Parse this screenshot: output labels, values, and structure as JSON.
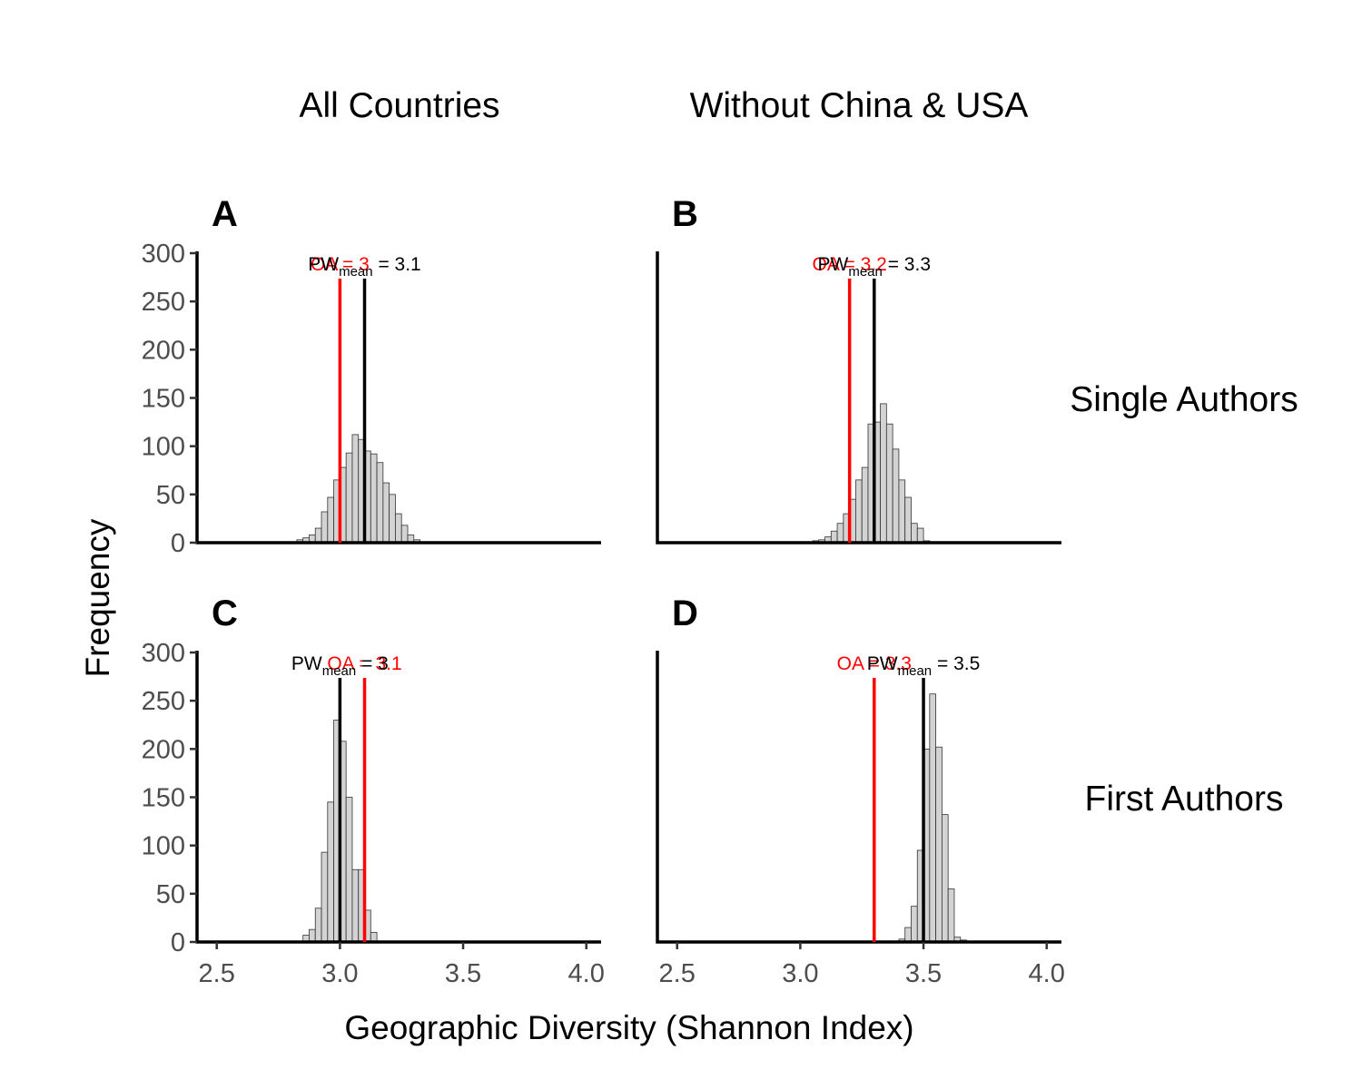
{
  "chart_data": {
    "type": "histogram",
    "column_titles": [
      "All Countries",
      "Without China & USA"
    ],
    "row_titles": [
      "Single Authors",
      "First Authors"
    ],
    "xlabel": "Geographic Diversity (Shannon Index)",
    "ylabel": "Frequency",
    "xlim": [
      2.42,
      4.06
    ],
    "ylim": [
      0,
      300
    ],
    "xticks": [
      "2.5",
      "3.0",
      "3.5",
      "4.0"
    ],
    "yticks": [
      "0",
      "50",
      "100",
      "150",
      "200",
      "250",
      "300"
    ],
    "bin_width": 0.025,
    "colors": {
      "bar_fill": "#d3d3d3",
      "bar_stroke": "#333333",
      "oa_line": "#ff0000",
      "pw_line": "#000000"
    },
    "panels": [
      {
        "letter": "A",
        "row": 0,
        "col": 0,
        "oa_value": 3.0,
        "oa_label": "OA = 3",
        "pw_value": 3.1,
        "pw_label_main": "PW",
        "pw_label_sub": "mean",
        "pw_label_rest": " = 3.1",
        "bins": [
          {
            "x": 2.8375,
            "count": 3
          },
          {
            "x": 2.8625,
            "count": 5
          },
          {
            "x": 2.8875,
            "count": 8
          },
          {
            "x": 2.9125,
            "count": 15
          },
          {
            "x": 2.9375,
            "count": 32
          },
          {
            "x": 2.9625,
            "count": 47
          },
          {
            "x": 2.9875,
            "count": 65
          },
          {
            "x": 3.0125,
            "count": 78
          },
          {
            "x": 3.0375,
            "count": 93
          },
          {
            "x": 3.0625,
            "count": 112
          },
          {
            "x": 3.0875,
            "count": 107
          },
          {
            "x": 3.1125,
            "count": 95
          },
          {
            "x": 3.1375,
            "count": 92
          },
          {
            "x": 3.1625,
            "count": 83
          },
          {
            "x": 3.1875,
            "count": 62
          },
          {
            "x": 3.2125,
            "count": 50
          },
          {
            "x": 3.2375,
            "count": 30
          },
          {
            "x": 3.2625,
            "count": 18
          },
          {
            "x": 3.2875,
            "count": 8
          },
          {
            "x": 3.3125,
            "count": 3
          }
        ]
      },
      {
        "letter": "B",
        "row": 0,
        "col": 1,
        "oa_value": 3.2,
        "oa_label": "OA = 3.2",
        "pw_value": 3.3,
        "pw_label_main": "PW",
        "pw_label_sub": "mean",
        "pw_label_rest": " = 3.3",
        "bins": [
          {
            "x": 3.0625,
            "count": 2
          },
          {
            "x": 3.0875,
            "count": 3
          },
          {
            "x": 3.1125,
            "count": 6
          },
          {
            "x": 3.1375,
            "count": 12
          },
          {
            "x": 3.1625,
            "count": 20
          },
          {
            "x": 3.1875,
            "count": 30
          },
          {
            "x": 3.2125,
            "count": 45
          },
          {
            "x": 3.2375,
            "count": 65
          },
          {
            "x": 3.2625,
            "count": 78
          },
          {
            "x": 3.2875,
            "count": 123
          },
          {
            "x": 3.3125,
            "count": 125
          },
          {
            "x": 3.3375,
            "count": 144
          },
          {
            "x": 3.3625,
            "count": 123
          },
          {
            "x": 3.3875,
            "count": 97
          },
          {
            "x": 3.4125,
            "count": 65
          },
          {
            "x": 3.4375,
            "count": 47
          },
          {
            "x": 3.4625,
            "count": 20
          },
          {
            "x": 3.4875,
            "count": 15
          },
          {
            "x": 3.5125,
            "count": 2
          }
        ]
      },
      {
        "letter": "C",
        "row": 1,
        "col": 0,
        "oa_value": 3.1,
        "oa_label": "OA = 3.1",
        "pw_value": 3.0,
        "pw_label_main": "PW",
        "pw_label_sub": "mean",
        "pw_label_rest": " = 3",
        "bins": [
          {
            "x": 2.8625,
            "count": 7
          },
          {
            "x": 2.8875,
            "count": 13
          },
          {
            "x": 2.9125,
            "count": 35
          },
          {
            "x": 2.9375,
            "count": 93
          },
          {
            "x": 2.9625,
            "count": 145
          },
          {
            "x": 2.9875,
            "count": 230
          },
          {
            "x": 3.0125,
            "count": 208
          },
          {
            "x": 3.0375,
            "count": 150
          },
          {
            "x": 3.0625,
            "count": 75
          },
          {
            "x": 3.0875,
            "count": 75
          },
          {
            "x": 3.1125,
            "count": 33
          },
          {
            "x": 3.1375,
            "count": 10
          }
        ]
      },
      {
        "letter": "D",
        "row": 1,
        "col": 1,
        "oa_value": 3.3,
        "oa_label": "OA = 3.3",
        "pw_value": 3.5,
        "pw_label_main": "PW",
        "pw_label_sub": "mean",
        "pw_label_rest": " = 3.5",
        "bins": [
          {
            "x": 3.4125,
            "count": 3
          },
          {
            "x": 3.4375,
            "count": 15
          },
          {
            "x": 3.4625,
            "count": 37
          },
          {
            "x": 3.4875,
            "count": 95
          },
          {
            "x": 3.5125,
            "count": 200
          },
          {
            "x": 3.5375,
            "count": 257
          },
          {
            "x": 3.5625,
            "count": 202
          },
          {
            "x": 3.5875,
            "count": 132
          },
          {
            "x": 3.6125,
            "count": 55
          },
          {
            "x": 3.6375,
            "count": 5
          },
          {
            "x": 3.6625,
            "count": 2
          }
        ]
      }
    ]
  }
}
